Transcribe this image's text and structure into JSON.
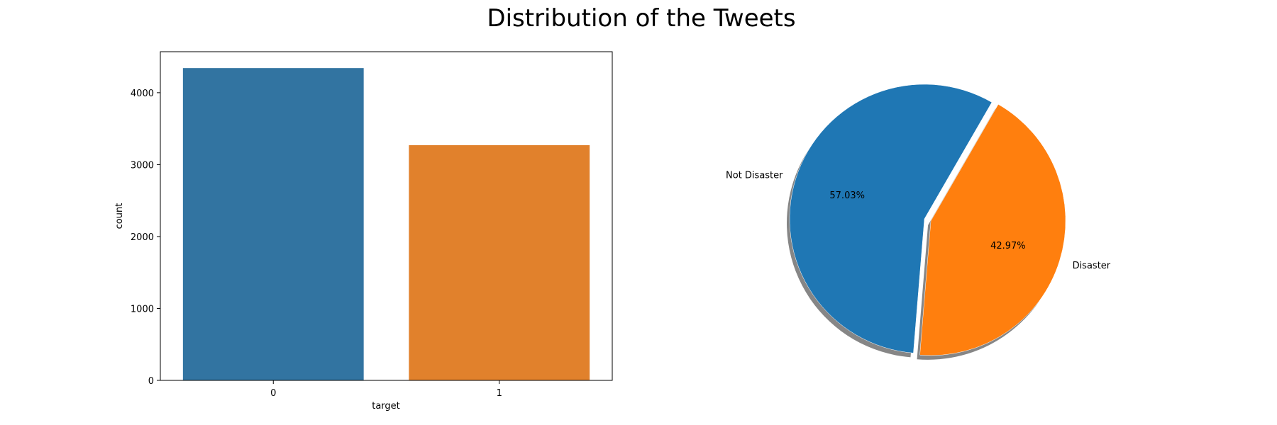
{
  "figure": {
    "title": "Distribution of the Tweets"
  },
  "chart_data": [
    {
      "type": "bar",
      "title": "",
      "xlabel": "target",
      "ylabel": "count",
      "categories": [
        "0",
        "1"
      ],
      "values": [
        4342,
        3271
      ],
      "ylim": [
        0,
        4570
      ],
      "yticks": [
        0,
        1000,
        2000,
        3000,
        4000
      ],
      "ytick_labels": [
        "0",
        "1000",
        "2000",
        "3000",
        "4000"
      ],
      "colors": [
        "#3274a1",
        "#e1812c"
      ],
      "grid": false
    },
    {
      "type": "pie",
      "title": "",
      "labels": [
        "Not Disaster",
        "Disaster"
      ],
      "values": [
        57.03,
        42.97
      ],
      "pct_labels": [
        "57.03%",
        "42.97%"
      ],
      "colors": [
        "#1f77b4",
        "#ff7f0e"
      ],
      "explode": [
        0,
        0.05
      ],
      "startangle": 60,
      "shadow": true,
      "shadow_color": "#7f7f7f"
    }
  ]
}
